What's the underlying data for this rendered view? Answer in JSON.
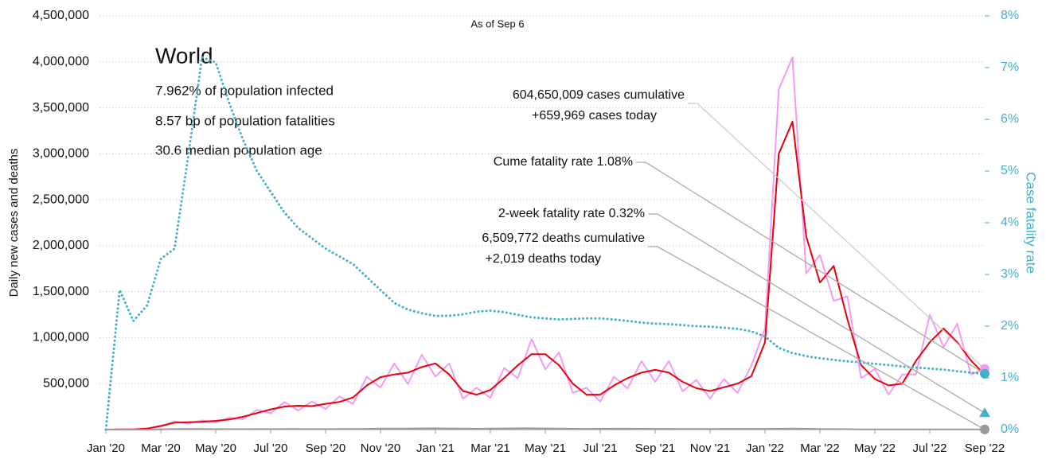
{
  "chart_data": {
    "type": "line",
    "title": "World",
    "subtitle": "As of Sep 6",
    "stats": [
      "7.962% of population infected",
      "8.57 bp of population fatalities",
      "30.6 median population age"
    ],
    "y_label": "Daily new cases and deaths",
    "y2_label": "Case fatality rate",
    "x": [
      0,
      0.5,
      1,
      1.5,
      2,
      2.5,
      3,
      3.5,
      4,
      4.5,
      5,
      5.5,
      6,
      6.5,
      7,
      7.5,
      8,
      8.5,
      9,
      9.5,
      10,
      10.5,
      11,
      11.5,
      12,
      12.5,
      13,
      13.5,
      14,
      14.5,
      15,
      15.5,
      16,
      16.5,
      17,
      17.5,
      18,
      18.5,
      19,
      19.5,
      20,
      20.5,
      21,
      21.5,
      22,
      22.5,
      23,
      23.5,
      24,
      24.5,
      25,
      25.5,
      26,
      26.5,
      27,
      27.5,
      28,
      28.5,
      29,
      29.5,
      30,
      30.5,
      31,
      31.5,
      32
    ],
    "xlim": [
      0,
      32
    ],
    "xticks": [
      {
        "value": 0,
        "label": "Jan '20"
      },
      {
        "value": 2,
        "label": "Mar '20"
      },
      {
        "value": 4,
        "label": "May '20"
      },
      {
        "value": 6,
        "label": "Jul '20"
      },
      {
        "value": 8,
        "label": "Sep '20"
      },
      {
        "value": 10,
        "label": "Nov '20"
      },
      {
        "value": 12,
        "label": "Jan '21"
      },
      {
        "value": 14,
        "label": "Mar '21"
      },
      {
        "value": 16,
        "label": "May '21"
      },
      {
        "value": 18,
        "label": "Jul '21"
      },
      {
        "value": 20,
        "label": "Sep '21"
      },
      {
        "value": 22,
        "label": "Nov '21"
      },
      {
        "value": 24,
        "label": "Jan '22"
      },
      {
        "value": 26,
        "label": "Mar '22"
      },
      {
        "value": 28,
        "label": "May '22"
      },
      {
        "value": 30,
        "label": "Jul '22"
      },
      {
        "value": 32,
        "label": "Sep '22"
      }
    ],
    "ylim": [
      0,
      4500000
    ],
    "yticks": [
      {
        "value": 500000,
        "label": "500,000"
      },
      {
        "value": 1000000,
        "label": "1,000,000"
      },
      {
        "value": 1500000,
        "label": "1,500,000"
      },
      {
        "value": 2000000,
        "label": "2,000,000"
      },
      {
        "value": 2500000,
        "label": "2,500,000"
      },
      {
        "value": 3000000,
        "label": "3,000,000"
      },
      {
        "value": 3500000,
        "label": "3,500,000"
      },
      {
        "value": 4000000,
        "label": "4,000,000"
      },
      {
        "value": 4500000,
        "label": "4,500,000"
      }
    ],
    "y2lim": [
      0,
      8
    ],
    "y2ticks": [
      {
        "value": 0,
        "label": "0%"
      },
      {
        "value": 1,
        "label": "1%"
      },
      {
        "value": 2,
        "label": "2%"
      },
      {
        "value": 3,
        "label": "3%"
      },
      {
        "value": 4,
        "label": "4%"
      },
      {
        "value": 5,
        "label": "5%"
      },
      {
        "value": 6,
        "label": "6%"
      },
      {
        "value": 7,
        "label": "7%"
      },
      {
        "value": 8,
        "label": "8%"
      }
    ],
    "grid": true,
    "series": [
      {
        "color": "#f49bf1",
        "values": [
          0,
          2600,
          2400,
          13000,
          32000,
          90000,
          64000,
          100000,
          76000,
          130000,
          112000,
          215000,
          176000,
          300000,
          208000,
          305000,
          224000,
          360000,
          280000,
          575000,
          456000,
          720000,
          496000,
          815000,
          576000,
          720000,
          336000,
          455000,
          344000,
          670000,
          560000,
          985000,
          656000,
          840000,
          400000,
          455000,
          304000,
          575000,
          448000,
          745000,
          520000,
          745000,
          416000,
          540000,
          336000,
          550000,
          400000,
          695000,
          1100000,
          3700000,
          4050000,
          1700000,
          1900000,
          1400000,
          1450000,
          560000,
          660000,
          380000,
          600000,
          600000,
          1250000,
          900000,
          1150000,
          600000,
          659969
        ]
      },
      {
        "color": "#e8000b",
        "values": [
          0,
          2000,
          3000,
          10000,
          40000,
          75000,
          80000,
          85000,
          95000,
          110000,
          140000,
          180000,
          220000,
          250000,
          260000,
          255000,
          280000,
          300000,
          350000,
          480000,
          570000,
          600000,
          620000,
          680000,
          720000,
          600000,
          420000,
          380000,
          430000,
          560000,
          700000,
          820000,
          820000,
          700000,
          500000,
          380000,
          380000,
          480000,
          560000,
          620000,
          650000,
          620000,
          520000,
          450000,
          420000,
          460000,
          500000,
          580000,
          950000,
          3000000,
          3350000,
          2100000,
          1600000,
          1780000,
          1200000,
          700000,
          550000,
          480000,
          500000,
          750000,
          950000,
          1100000,
          950000,
          750000,
          600000
        ]
      },
      {
        "color": "#45b0c8",
        "axis": "y2",
        "dotted": true,
        "values": [
          0,
          2.7,
          2.1,
          2.4,
          3.3,
          3.5,
          5.3,
          7.2,
          7.1,
          6.3,
          5.6,
          5.0,
          4.6,
          4.2,
          3.9,
          3.7,
          3.5,
          3.35,
          3.2,
          2.95,
          2.7,
          2.45,
          2.32,
          2.25,
          2.2,
          2.2,
          2.23,
          2.28,
          2.3,
          2.27,
          2.22,
          2.17,
          2.15,
          2.13,
          2.14,
          2.15,
          2.15,
          2.13,
          2.1,
          2.07,
          2.05,
          2.04,
          2.02,
          2.0,
          1.99,
          1.97,
          1.95,
          1.9,
          1.8,
          1.58,
          1.48,
          1.42,
          1.38,
          1.35,
          1.32,
          1.3,
          1.27,
          1.25,
          1.22,
          1.2,
          1.18,
          1.16,
          1.13,
          1.1,
          1.08
        ]
      },
      {
        "color": "#999999",
        "values": [
          0,
          50,
          100,
          300,
          3000,
          6000,
          6500,
          6000,
          5000,
          4500,
          4500,
          5000,
          5500,
          6000,
          6000,
          5500,
          5500,
          6000,
          6500,
          8000,
          10000,
          11000,
          11500,
          13000,
          14000,
          12000,
          10000,
          9000,
          10000,
          12000,
          13500,
          13500,
          12500,
          10000,
          8500,
          8000,
          8500,
          9500,
          9500,
          9000,
          8000,
          7500,
          7000,
          7000,
          7000,
          7500,
          7500,
          7500,
          8000,
          9000,
          10000,
          9000,
          7000,
          5000,
          4000,
          3000,
          2500,
          2000,
          2000,
          2200,
          2300,
          2200,
          2100,
          2000,
          2019
        ]
      }
    ],
    "annotations": [
      {
        "lines": [
          "604,650,009 cases cumulative",
          "+659,969 cases today"
        ],
        "value": 659969,
        "axis": "y",
        "marker": "circle",
        "color": "#f49bf1"
      },
      {
        "lines": [
          "Cume fatality rate 1.08%"
        ],
        "value": 1.08,
        "axis": "y2",
        "marker": "circle",
        "color": "#45b0c8"
      },
      {
        "lines": [
          "2-week fatality rate 0.32%"
        ],
        "value": 0.32,
        "axis": "y2",
        "marker": "triangle",
        "color": "#45b0c8"
      },
      {
        "lines": [
          "6,509,772 deaths cumulative",
          "+2,019 deaths today"
        ],
        "value": 2019,
        "axis": "y",
        "marker": "circle",
        "color": "#999999"
      }
    ]
  }
}
